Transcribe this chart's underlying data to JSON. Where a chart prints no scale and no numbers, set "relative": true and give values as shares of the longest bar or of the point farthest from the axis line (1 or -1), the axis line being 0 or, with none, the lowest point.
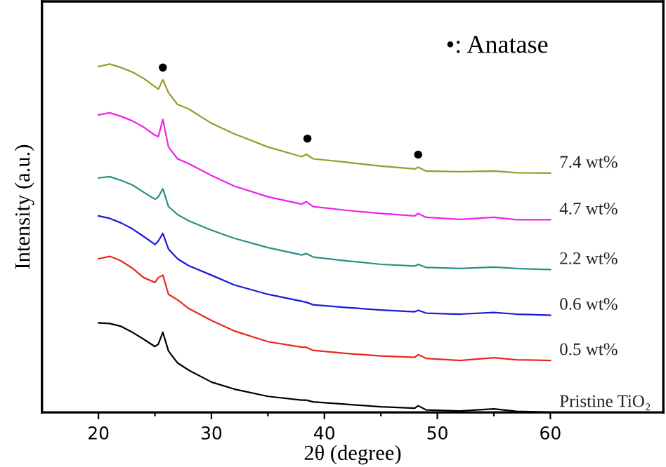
{
  "chart_data": {
    "type": "line",
    "relative": true,
    "xlabel": "2θ (degree)",
    "ylabel": "Intensity (a.u.)",
    "xlim": [
      15,
      70
    ],
    "xticks": [
      20,
      {
        "value": 25,
        "label": null
      },
      30,
      {
        "value": 35,
        "label": null
      },
      40,
      {
        "value": 45,
        "label": null
      },
      50,
      {
        "value": 55,
        "label": null
      },
      60
    ],
    "x": [
      20,
      21,
      22,
      23,
      24,
      25,
      25.3,
      25.7,
      26.2,
      27,
      28,
      30,
      32,
      35,
      38,
      38.4,
      39,
      42,
      45,
      48,
      48.3,
      49,
      52,
      55,
      57,
      60
    ],
    "tick_labels": "x",
    "grid": false,
    "legend": false,
    "marker": "none",
    "line_style": "solid",
    "series": [
      {
        "name": "7.4 wt%",
        "color": "#9b9b2a",
        "values": [
          0.993,
          1.0,
          0.99,
          0.977,
          0.959,
          0.935,
          0.928,
          0.955,
          0.918,
          0.884,
          0.871,
          0.83,
          0.8,
          0.762,
          0.734,
          0.741,
          0.728,
          0.718,
          0.707,
          0.699,
          0.704,
          0.693,
          0.691,
          0.693,
          0.688,
          0.687
        ]
      },
      {
        "name": "4.7 wt%",
        "color": "#ee22ee",
        "values": [
          0.854,
          0.86,
          0.85,
          0.837,
          0.819,
          0.796,
          0.792,
          0.841,
          0.762,
          0.728,
          0.714,
          0.68,
          0.65,
          0.619,
          0.598,
          0.605,
          0.591,
          0.58,
          0.571,
          0.564,
          0.571,
          0.56,
          0.554,
          0.56,
          0.553,
          0.553
        ]
      },
      {
        "name": "2.2 wt%",
        "color": "#2a8f85",
        "values": [
          0.673,
          0.677,
          0.666,
          0.653,
          0.632,
          0.612,
          0.619,
          0.642,
          0.591,
          0.568,
          0.55,
          0.523,
          0.5,
          0.473,
          0.452,
          0.456,
          0.446,
          0.435,
          0.425,
          0.42,
          0.425,
          0.416,
          0.413,
          0.417,
          0.413,
          0.41
        ]
      },
      {
        "name": "0.6 wt%",
        "color": "#1a1ad8",
        "values": [
          0.564,
          0.557,
          0.544,
          0.527,
          0.505,
          0.482,
          0.492,
          0.514,
          0.469,
          0.441,
          0.421,
          0.394,
          0.366,
          0.339,
          0.319,
          0.316,
          0.309,
          0.301,
          0.294,
          0.289,
          0.293,
          0.285,
          0.282,
          0.287,
          0.282,
          0.279
        ]
      },
      {
        "name": "0.5 wt%",
        "color": "#e8281e",
        "values": [
          0.441,
          0.448,
          0.435,
          0.414,
          0.387,
          0.373,
          0.387,
          0.394,
          0.339,
          0.323,
          0.298,
          0.264,
          0.234,
          0.203,
          0.187,
          0.187,
          0.178,
          0.169,
          0.162,
          0.158,
          0.166,
          0.155,
          0.149,
          0.157,
          0.151,
          0.149
        ]
      },
      {
        "name": "Pristine TiO₂",
        "color": "#000000",
        "values": [
          0.257,
          0.255,
          0.247,
          0.23,
          0.21,
          0.189,
          0.196,
          0.23,
          0.176,
          0.142,
          0.121,
          0.087,
          0.067,
          0.046,
          0.035,
          0.035,
          0.03,
          0.023,
          0.016,
          0.012,
          0.019,
          0.007,
          0.004,
          0.01,
          0.003,
          0.0
        ]
      },
      {
        "type": "scatter",
        "marker": "circle",
        "color": "#000000",
        "x": [
          25.7,
          38.5,
          48.3
        ],
        "values": [
          0.99,
          0.786,
          0.74
        ]
      }
    ],
    "annotations": [
      "•: Anatase"
    ]
  }
}
